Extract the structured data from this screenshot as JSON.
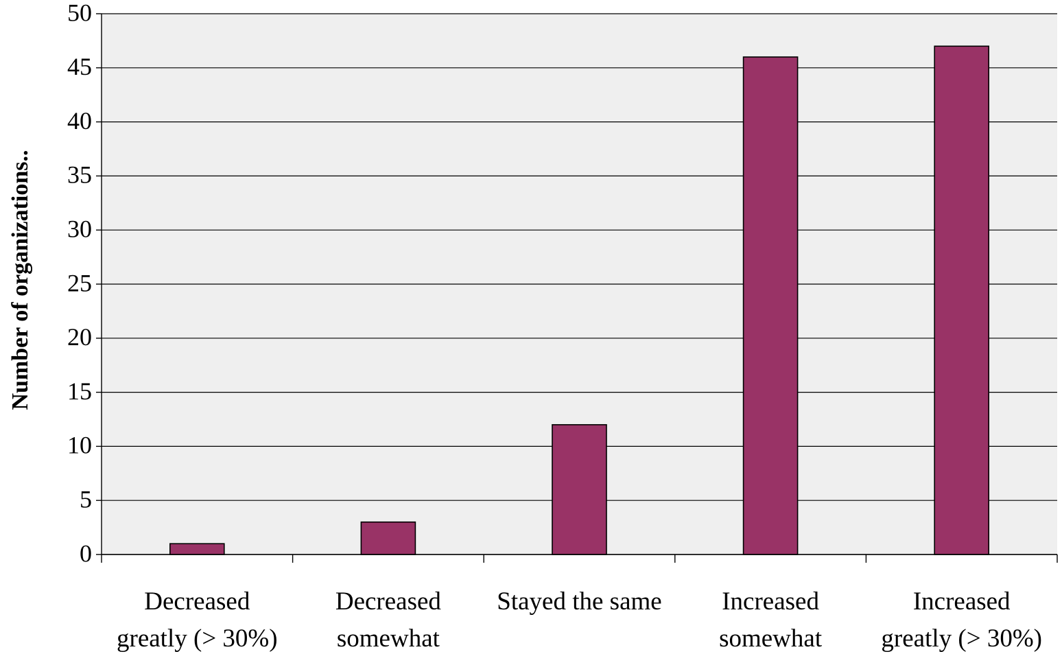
{
  "chart_data": {
    "type": "bar",
    "categories": [
      [
        "Decreased",
        "greatly (> 30%)"
      ],
      [
        "Decreased",
        "somewhat"
      ],
      [
        "Stayed the same"
      ],
      [
        "Increased",
        "somewhat"
      ],
      [
        "Increased",
        "greatly (> 30%)"
      ]
    ],
    "values": [
      1,
      3,
      12,
      46,
      47
    ],
    "ylabel": "Number of organizations..",
    "xlabel": "",
    "ylim": [
      0,
      50
    ],
    "yticks": [
      0,
      5,
      10,
      15,
      20,
      25,
      30,
      35,
      40,
      45,
      50
    ],
    "grid": true,
    "legend": "none",
    "colors": {
      "bar": "#993366",
      "plot_background": "#efefef"
    }
  }
}
